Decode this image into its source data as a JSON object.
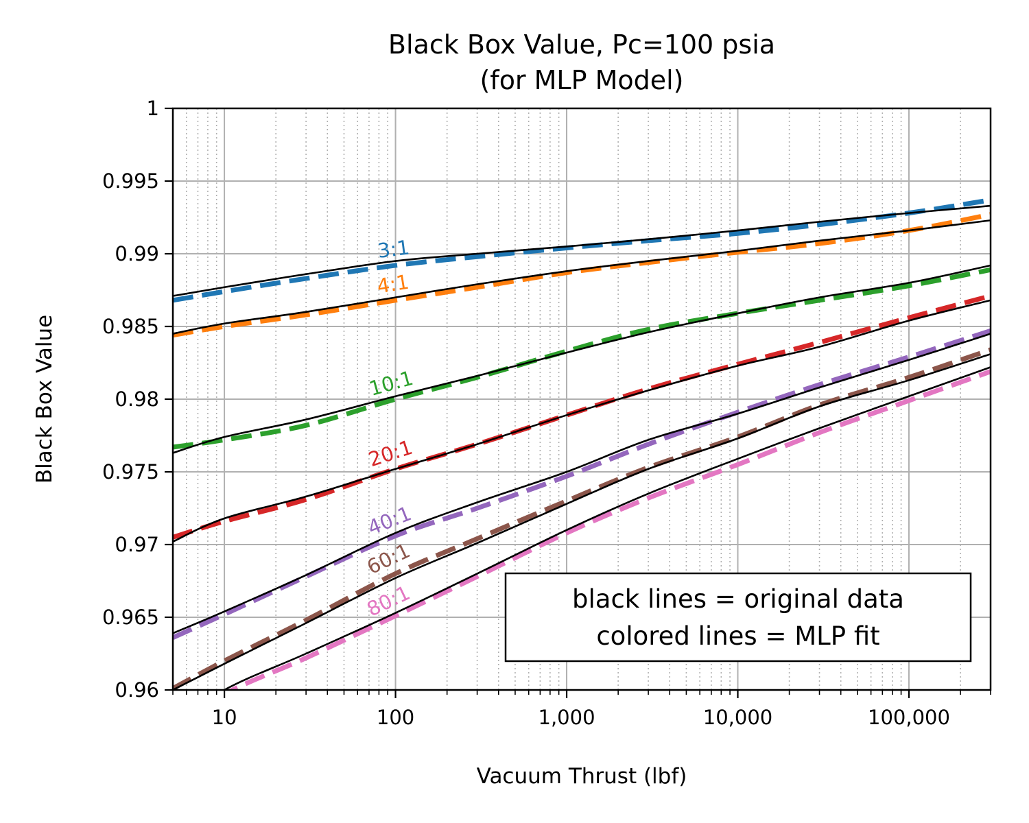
{
  "chart_data": {
    "type": "line",
    "title": "Black Box Value, Pc=100 psia",
    "subtitle": "(for MLP Model)",
    "xlabel": "Vacuum Thrust (lbf)",
    "ylabel": "Black Box Value",
    "xscale": "log",
    "xlim": [
      5,
      300000
    ],
    "ylim": [
      0.96,
      1.0
    ],
    "grid": "major solid, minor dotted",
    "x_ticks": [
      {
        "value": 10,
        "label": "10"
      },
      {
        "value": 100,
        "label": "100"
      },
      {
        "value": 1000,
        "label": "1,000"
      },
      {
        "value": 10000,
        "label": "10,000"
      },
      {
        "value": 100000,
        "label": "100,000"
      }
    ],
    "y_ticks": [
      {
        "value": 0.96,
        "label": "0.96"
      },
      {
        "value": 0.965,
        "label": "0.965"
      },
      {
        "value": 0.97,
        "label": "0.97"
      },
      {
        "value": 0.975,
        "label": "0.975"
      },
      {
        "value": 0.98,
        "label": "0.98"
      },
      {
        "value": 0.985,
        "label": "0.985"
      },
      {
        "value": 0.99,
        "label": "0.99"
      },
      {
        "value": 0.995,
        "label": "0.995"
      },
      {
        "value": 1.0,
        "label": "1"
      }
    ],
    "x": [
      5,
      10,
      30,
      100,
      300,
      1000,
      3000,
      10000,
      30000,
      100000,
      300000
    ],
    "series": [
      {
        "name": "3:1",
        "color": "#1f77b4",
        "label_at": 100,
        "original": [
          0.9871,
          0.9877,
          0.9886,
          0.9895,
          0.99,
          0.9905,
          0.991,
          0.9916,
          0.9922,
          0.9928,
          0.9933
        ],
        "fit": [
          0.9868,
          0.9874,
          0.9883,
          0.9892,
          0.9898,
          0.9904,
          0.9909,
          0.9914,
          0.992,
          0.9928,
          0.9937
        ]
      },
      {
        "name": "4:1",
        "color": "#ff7f0e",
        "label_at": 100,
        "original": [
          0.9845,
          0.9852,
          0.986,
          0.987,
          0.9879,
          0.9888,
          0.9895,
          0.9902,
          0.9909,
          0.9916,
          0.9923
        ],
        "fit": [
          0.9844,
          0.985,
          0.9858,
          0.9868,
          0.9877,
          0.9887,
          0.9894,
          0.9901,
          0.9907,
          0.9916,
          0.9927
        ]
      },
      {
        "name": "10:1",
        "color": "#2ca02c",
        "label_at": 100,
        "original": [
          0.9763,
          0.9774,
          0.9786,
          0.9802,
          0.9816,
          0.9832,
          0.9846,
          0.9859,
          0.987,
          0.988,
          0.9892
        ],
        "fit": [
          0.9767,
          0.9772,
          0.9782,
          0.98,
          0.9815,
          0.9833,
          0.9848,
          0.9859,
          0.9868,
          0.9878,
          0.9889
        ]
      },
      {
        "name": "20:1",
        "color": "#d62728",
        "label_at": 100,
        "original": [
          0.9702,
          0.9718,
          0.9733,
          0.9752,
          0.9769,
          0.9789,
          0.9806,
          0.9823,
          0.9836,
          0.9854,
          0.9868
        ],
        "fit": [
          0.9705,
          0.9716,
          0.9731,
          0.9752,
          0.9769,
          0.9789,
          0.9807,
          0.9824,
          0.9839,
          0.9856,
          0.9871
        ]
      },
      {
        "name": "40:1",
        "color": "#9467bd",
        "label_at": 100,
        "original": [
          0.9639,
          0.9654,
          0.9679,
          0.9708,
          0.9729,
          0.975,
          0.9772,
          0.979,
          0.9808,
          0.9827,
          0.9845
        ],
        "fit": [
          0.9636,
          0.9652,
          0.9678,
          0.9706,
          0.9725,
          0.9747,
          0.9769,
          0.9791,
          0.981,
          0.9829,
          0.9847
        ]
      },
      {
        "name": "60:1",
        "color": "#8c564b",
        "label_at": 100,
        "original": [
          0.96,
          0.9618,
          0.9646,
          0.9677,
          0.9701,
          0.9728,
          0.9752,
          0.9773,
          0.9795,
          0.9813,
          0.9831
        ],
        "fit": [
          0.9601,
          0.962,
          0.9648,
          0.968,
          0.9704,
          0.973,
          0.9753,
          0.9774,
          0.9796,
          0.9815,
          0.9834
        ]
      },
      {
        "name": "80:1",
        "color": "#e377c2",
        "label_at": 100,
        "original": [
          0.9574,
          0.96,
          0.9625,
          0.9653,
          0.968,
          0.971,
          0.9735,
          0.9759,
          0.978,
          0.9802,
          0.9822
        ],
        "fit": [
          0.957,
          0.9597,
          0.9622,
          0.9651,
          0.9678,
          0.9708,
          0.9732,
          0.9755,
          0.9777,
          0.9799,
          0.9819
        ]
      }
    ],
    "legend": {
      "placement": "lower-right",
      "lines": [
        "black lines = original data",
        "colored lines = MLP fit"
      ]
    }
  }
}
